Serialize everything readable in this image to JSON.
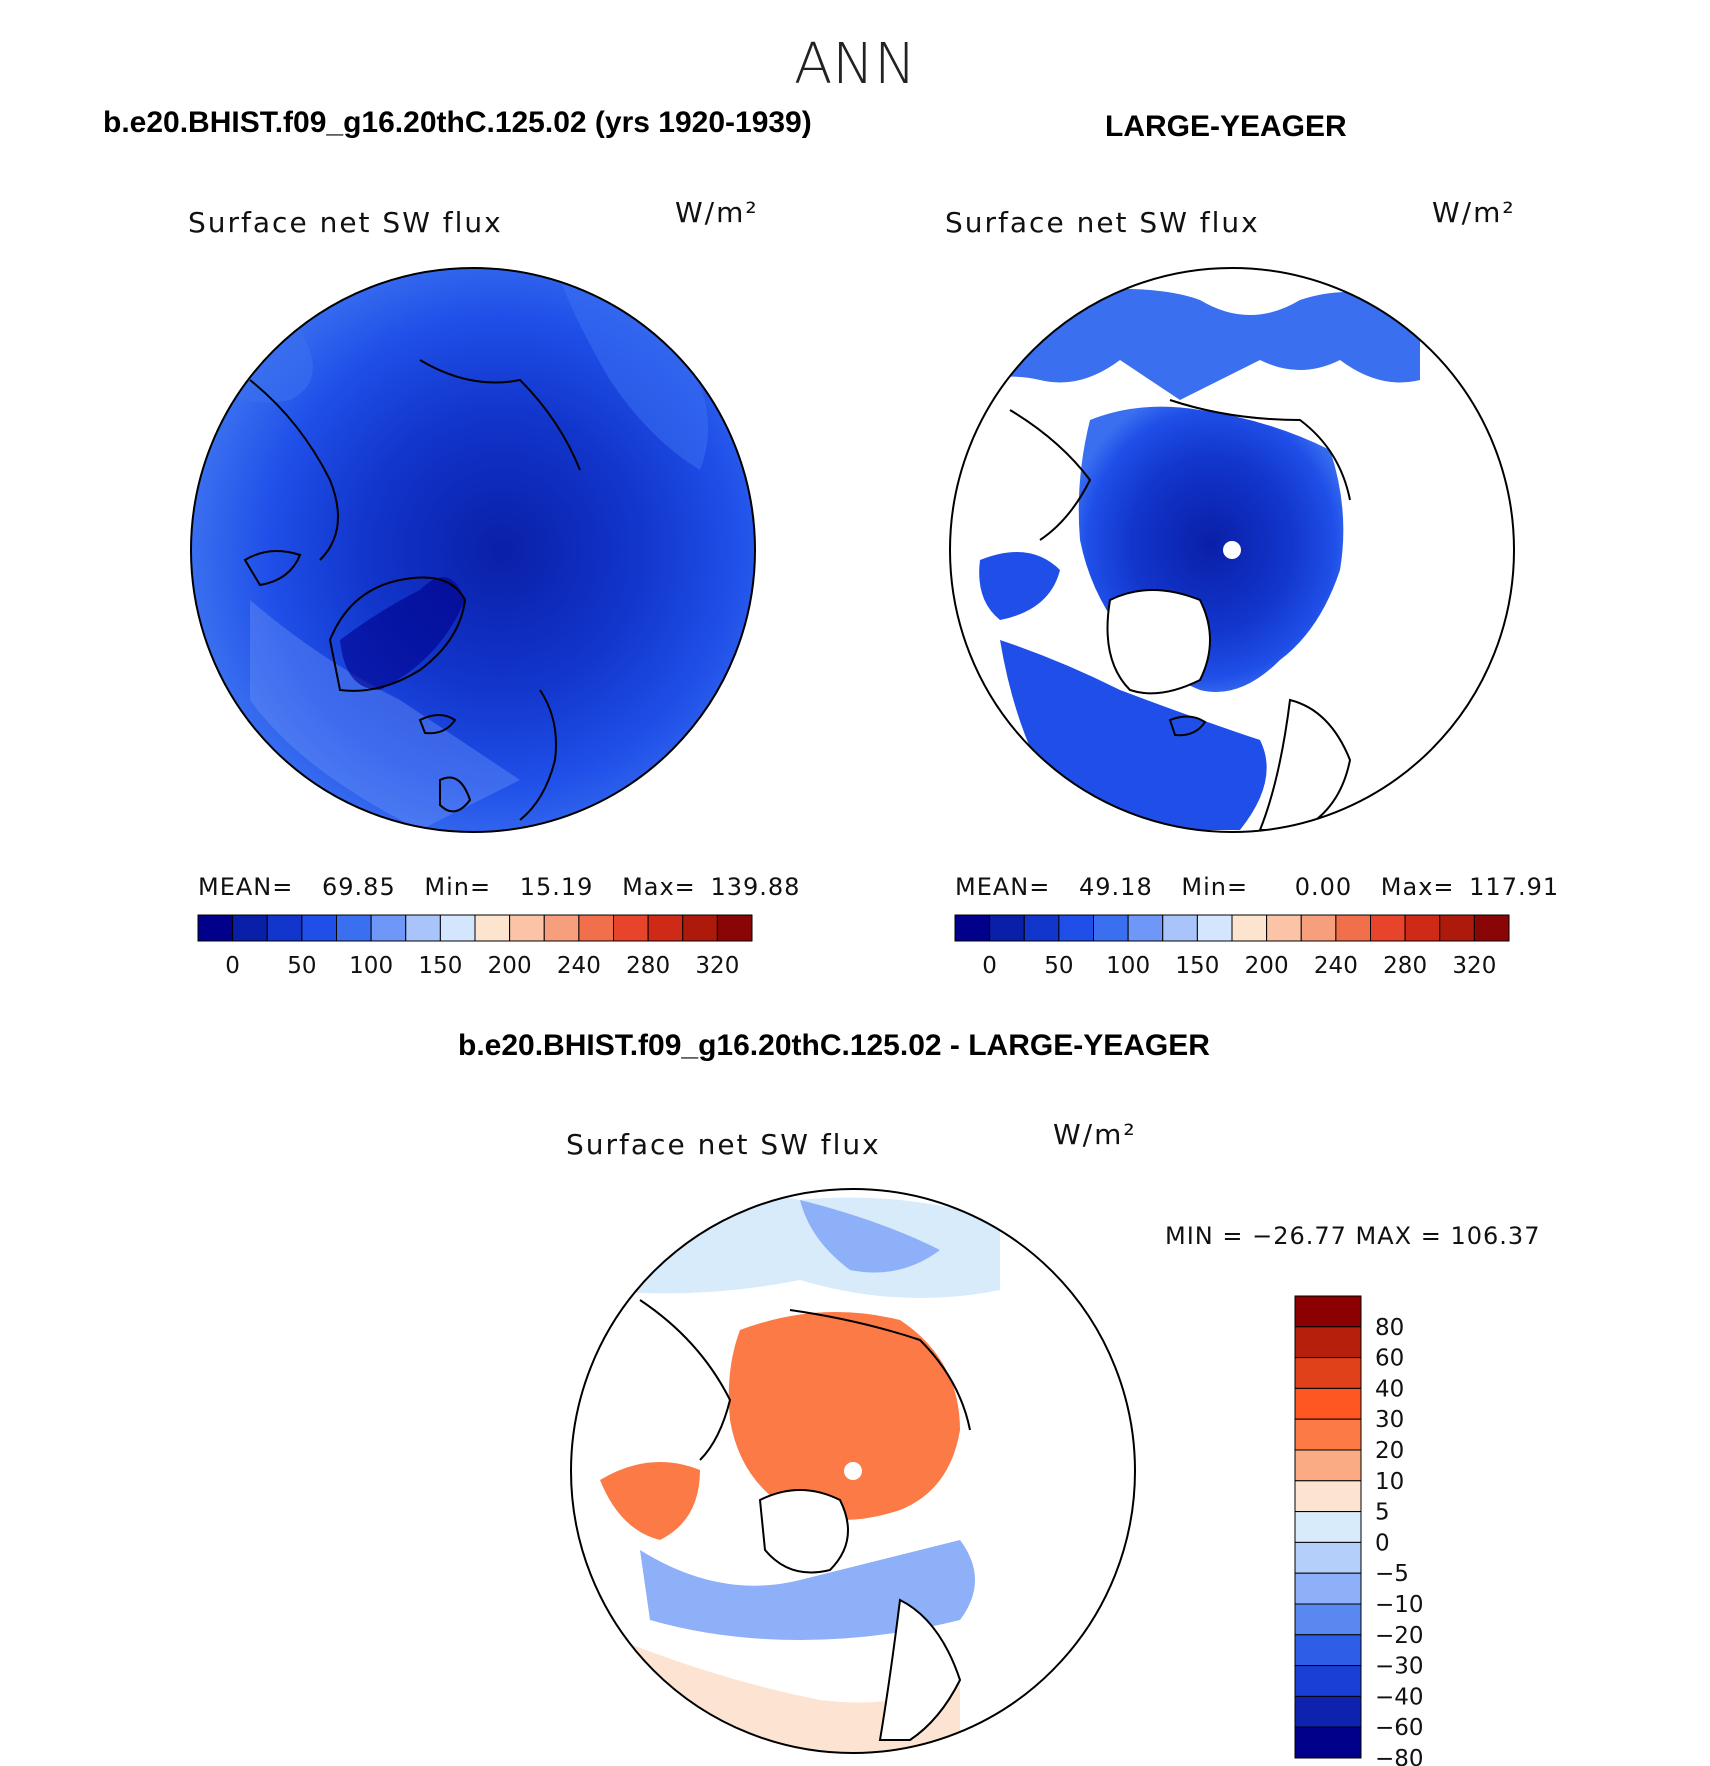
{
  "page": {
    "title": "ANN",
    "left_panel_title": "b.e20.BHIST.f09_g16.20thC.125.02 (yrs 1920-1939)",
    "right_panel_title": "LARGE-YEAGER",
    "diff_panel_title": "b.e20.BHIST.f09_g16.20thC.125.02 - LARGE-YEAGER"
  },
  "panels": {
    "left": {
      "variable": "Surface net SW flux",
      "units": "W/m²",
      "mean_label": "MEAN=",
      "mean": "69.85",
      "min_label": "Min=",
      "min": "15.19",
      "max_label": "Max=",
      "max": "139.88"
    },
    "right": {
      "variable": "Surface net SW flux",
      "units": "W/m²",
      "mean_label": "MEAN=",
      "mean": "49.18",
      "min_label": "Min=",
      "min": "0.00",
      "max_label": "Max=",
      "max": "117.91"
    },
    "diff": {
      "variable": "Surface net SW flux",
      "units": "W/m²",
      "minmax_text": "MIN = −26.77 MAX = 106.37"
    }
  },
  "chart_data": [
    {
      "type": "heatmap",
      "title": "Surface net SW flux",
      "projection": "north polar stereographic",
      "units": "W/m²",
      "stats": {
        "mean": 69.85,
        "min": 15.19,
        "max": 139.88
      },
      "colorbar": {
        "orientation": "horizontal",
        "tick_labels": [
          "0",
          "50",
          "100",
          "150",
          "200",
          "240",
          "280",
          "320"
        ],
        "colors": [
          "#00008b",
          "#0a1fa8",
          "#1236cc",
          "#1f4fe8",
          "#3a6ff0",
          "#6f97f7",
          "#a8c4fb",
          "#d4e6fd",
          "#fde4cf",
          "#fbc4a6",
          "#f79e7c",
          "#f26f4c",
          "#e8442b",
          "#cf2a17",
          "#ad1a0c",
          "#8a0505"
        ]
      }
    },
    {
      "type": "heatmap",
      "title": "Surface net SW flux",
      "projection": "north polar stereographic",
      "units": "W/m²",
      "stats": {
        "mean": 49.18,
        "min": 0.0,
        "max": 117.91
      },
      "colorbar": {
        "orientation": "horizontal",
        "tick_labels": [
          "0",
          "50",
          "100",
          "150",
          "200",
          "240",
          "280",
          "320"
        ],
        "colors": [
          "#00008b",
          "#0a1fa8",
          "#1236cc",
          "#1f4fe8",
          "#3a6ff0",
          "#6f97f7",
          "#a8c4fb",
          "#d4e6fd",
          "#fde4cf",
          "#fbc4a6",
          "#f79e7c",
          "#f26f4c",
          "#e8442b",
          "#cf2a17",
          "#ad1a0c",
          "#8a0505"
        ]
      }
    },
    {
      "type": "heatmap",
      "title": "Surface net SW flux",
      "projection": "north polar stereographic",
      "units": "W/m²",
      "stats": {
        "min": -26.77,
        "max": 106.37
      },
      "colorbar": {
        "orientation": "vertical",
        "tick_labels": [
          "80",
          "60",
          "40",
          "30",
          "20",
          "10",
          "5",
          "0",
          "−5",
          "−10",
          "−20",
          "−30",
          "−40",
          "−60",
          "−80"
        ],
        "colors": [
          "#8b0000",
          "#b51f0c",
          "#e0401a",
          "#ff5722",
          "#fc7a46",
          "#fbab84",
          "#fde4d2",
          "#d8ebfb",
          "#b5cffb",
          "#8db0f8",
          "#5a88f1",
          "#2f5ee6",
          "#1a3fd6",
          "#0d23b0",
          "#00008b"
        ]
      }
    }
  ]
}
